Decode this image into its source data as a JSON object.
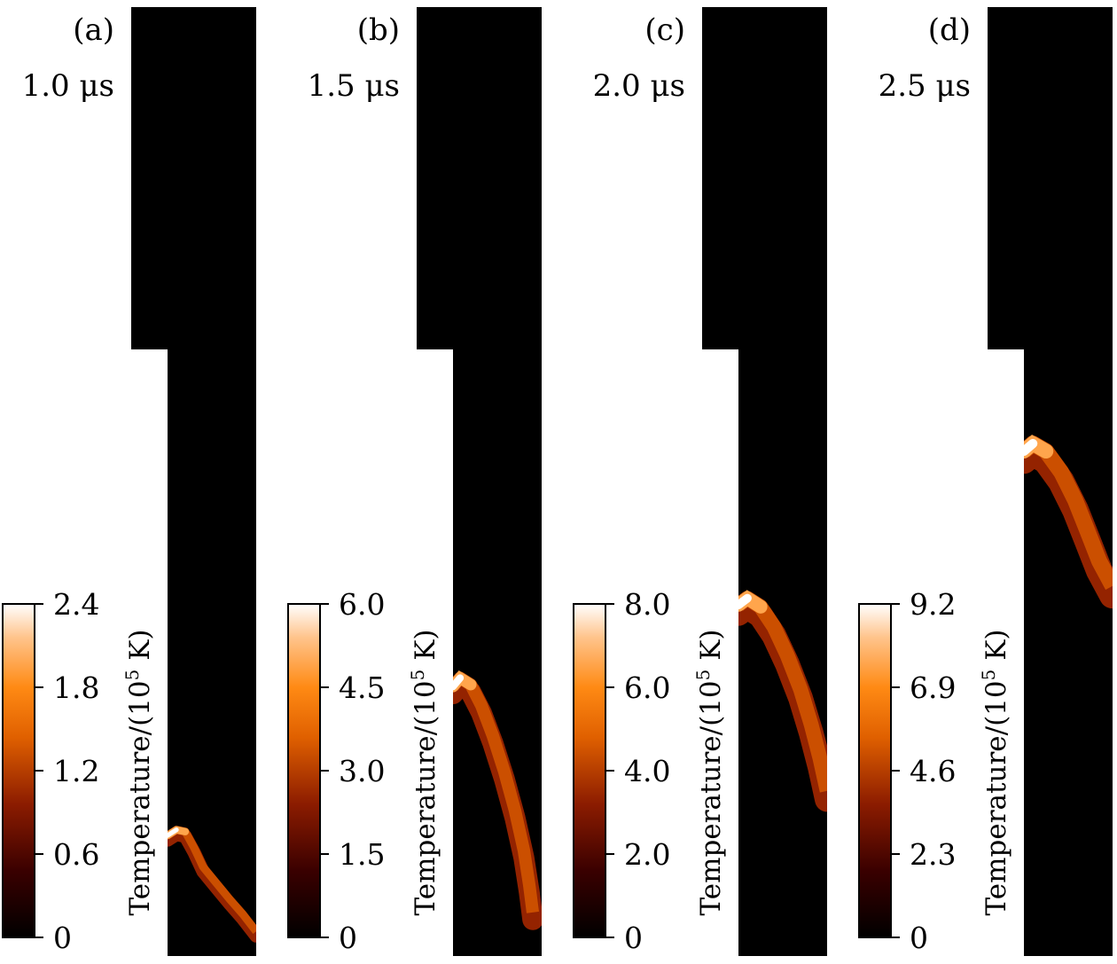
{
  "chart_data": [
    {
      "type": "heatmap",
      "panel": "(a)",
      "time": "1.0 μs",
      "colorbar": {
        "label": "Temperature/(10",
        "label_sup": "5",
        "label_end": " K)",
        "ticks": [
          "0",
          "0.6",
          "1.2",
          "1.8",
          "2.4"
        ],
        "range": [
          0,
          2.4
        ]
      },
      "front": {
        "points": [
          [
            0.0,
            0.873
          ],
          [
            0.1,
            0.867
          ],
          [
            0.2,
            0.869
          ],
          [
            0.3,
            0.886
          ],
          [
            0.4,
            0.906
          ],
          [
            0.55,
            0.923
          ],
          [
            0.7,
            0.94
          ],
          [
            0.85,
            0.956
          ],
          [
            1.0,
            0.974
          ]
        ],
        "thickness": 0.014,
        "peak": 2.4
      }
    },
    {
      "type": "heatmap",
      "panel": "(b)",
      "time": "1.5 μs",
      "colorbar": {
        "label": "Temperature/(10",
        "label_sup": "5",
        "label_end": " K)",
        "ticks": [
          "0",
          "1.5",
          "3.0",
          "4.5",
          "6.0"
        ],
        "range": [
          0,
          6.0
        ]
      },
      "front": {
        "points": [
          [
            0.0,
            0.716
          ],
          [
            0.08,
            0.707
          ],
          [
            0.2,
            0.714
          ],
          [
            0.32,
            0.736
          ],
          [
            0.45,
            0.768
          ],
          [
            0.58,
            0.806
          ],
          [
            0.7,
            0.847
          ],
          [
            0.8,
            0.889
          ],
          [
            0.86,
            0.925
          ],
          [
            0.9,
            0.954
          ]
        ],
        "thickness": 0.022,
        "peak": 6.0
      }
    },
    {
      "type": "heatmap",
      "panel": "(c)",
      "time": "2.0 μs",
      "colorbar": {
        "label": "Temperature/(10",
        "label_sup": "5",
        "label_end": " K)",
        "ticks": [
          "0",
          "2.0",
          "4.0",
          "6.0",
          "8.0"
        ],
        "range": [
          0,
          8.0
        ]
      },
      "front": {
        "points": [
          [
            0.0,
            0.63
          ],
          [
            0.1,
            0.623
          ],
          [
            0.25,
            0.632
          ],
          [
            0.4,
            0.653
          ],
          [
            0.55,
            0.683
          ],
          [
            0.7,
            0.719
          ],
          [
            0.82,
            0.756
          ],
          [
            0.92,
            0.792
          ],
          [
            1.0,
            0.826
          ]
        ],
        "thickness": 0.026,
        "peak": 8.0
      }
    },
    {
      "type": "heatmap",
      "panel": "(d)",
      "time": "2.5 μs",
      "colorbar": {
        "label": "Temperature/(10",
        "label_sup": "5",
        "label_end": " K)",
        "ticks": [
          "0",
          "2.3",
          "4.6",
          "6.9",
          "9.2"
        ],
        "range": [
          0,
          9.2
        ]
      },
      "front": {
        "points": [
          [
            0.0,
            0.468
          ],
          [
            0.1,
            0.46
          ],
          [
            0.25,
            0.468
          ],
          [
            0.42,
            0.49
          ],
          [
            0.58,
            0.52
          ],
          [
            0.72,
            0.553
          ],
          [
            0.85,
            0.584
          ],
          [
            1.0,
            0.61
          ]
        ],
        "thickness": 0.028,
        "peak": 9.2
      }
    }
  ]
}
